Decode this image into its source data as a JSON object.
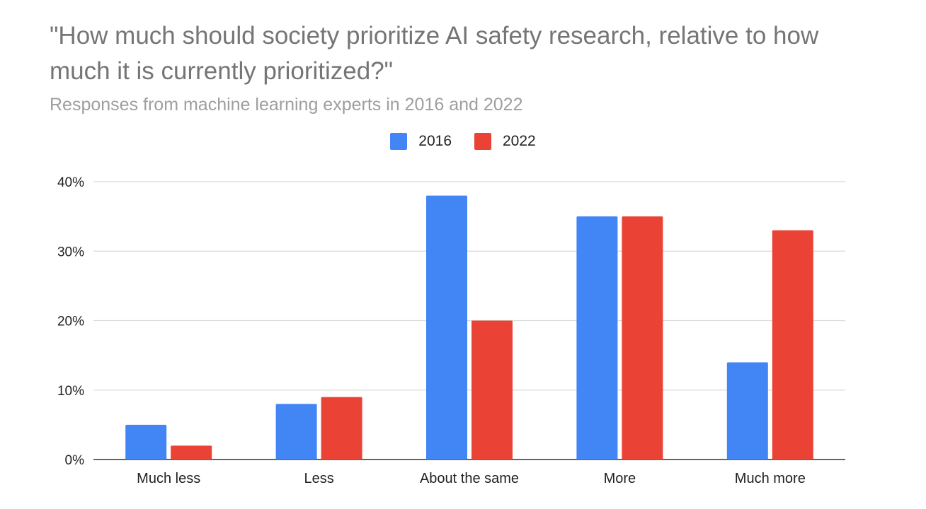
{
  "chart_data": {
    "type": "bar",
    "title": "\"How much should society prioritize AI safety research, relative to how much it is currently prioritized?\"",
    "subtitle": "Responses from machine learning experts in 2016 and 2022",
    "categories": [
      "Much less",
      "Less",
      "About the same",
      "More",
      "Much more"
    ],
    "series": [
      {
        "name": "2016",
        "color": "#4285f4",
        "values": [
          5,
          8,
          38,
          35,
          14
        ]
      },
      {
        "name": "2022",
        "color": "#ea4335",
        "values": [
          2,
          9,
          20,
          35,
          33
        ]
      }
    ],
    "ylim": [
      0,
      40
    ],
    "yticks": [
      "0%",
      "10%",
      "20%",
      "30%",
      "40%"
    ],
    "grid": true,
    "legend_position": "top"
  }
}
